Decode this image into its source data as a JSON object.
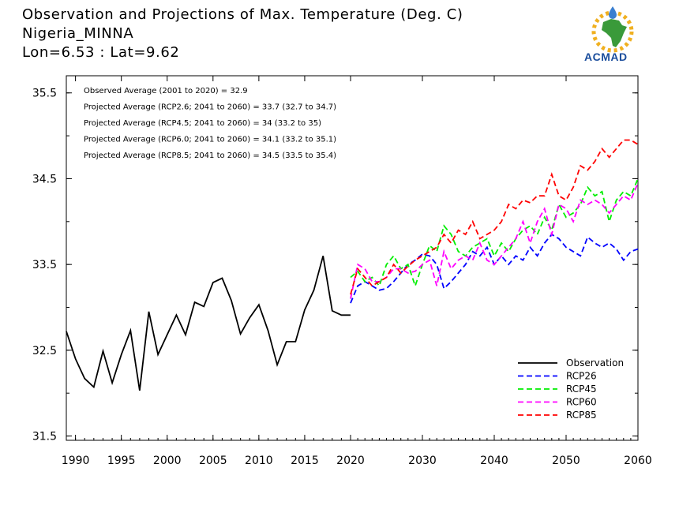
{
  "header": {
    "title": "Observation and Projections of Max. Temperature (Deg. C)",
    "location": "Nigeria_MINNA",
    "coords": "Lon=6.53 : Lat=9.62"
  },
  "logo": {
    "text": "ACMAD"
  },
  "chart_data": {
    "type": "line",
    "title": "Observation and Projections of Max. Temperature (Deg. C)",
    "xlabel": "",
    "ylabel": "",
    "xlim": [
      1989,
      2060
    ],
    "ylim": [
      31.45,
      35.7
    ],
    "x_ticks": [
      "1990",
      "1995",
      "2000",
      "2005",
      "2010",
      "2015",
      "2020",
      "2030",
      "2040",
      "2050",
      "2060"
    ],
    "x_tick_values": [
      1990,
      1995,
      2000,
      2005,
      2010,
      2015,
      2020,
      2030,
      2040,
      2050,
      2060
    ],
    "y_ticks": [
      "31.5",
      "32.5",
      "33.5",
      "34.5",
      "35.5"
    ],
    "y_tick_values": [
      31.5,
      32.5,
      33.5,
      34.5,
      35.5
    ],
    "annotations": [
      "Observed Average (2001 to 2020) = 32.9",
      "Projected Average (RCP2.6; 2041 to 2060) = 33.7 (32.7 to 34.7)",
      "Projected Average (RCP4.5; 2041 to 2060) = 34 (33.2 to 35)",
      "Projected Average (RCP6.0; 2041 to 2060) = 34.1 (33.2 to 35.1)",
      "Projected Average (RCP8.5; 2041 to 2060) = 34.5 (33.5 to 35.4)"
    ],
    "legend_position": "bottom-right",
    "series": [
      {
        "name": "Observation",
        "color": "#000000",
        "dashed": false,
        "x": [
          1989,
          1990,
          1991,
          1992,
          1993,
          1994,
          1995,
          1996,
          1997,
          1998,
          1999,
          2000,
          2001,
          2002,
          2003,
          2004,
          2005,
          2006,
          2007,
          2008,
          2009,
          2010,
          2011,
          2012,
          2013,
          2014,
          2015,
          2016,
          2017,
          2018,
          2019,
          2020
        ],
        "y": [
          32.72,
          32.4,
          32.17,
          32.07,
          32.49,
          32.12,
          32.45,
          32.73,
          32.03,
          32.95,
          32.45,
          32.68,
          32.91,
          32.68,
          33.06,
          33.01,
          33.29,
          33.34,
          33.08,
          32.69,
          32.88,
          33.03,
          32.73,
          32.33,
          32.6,
          32.6,
          32.97,
          33.2,
          33.6,
          32.96,
          32.91,
          32.91
        ]
      },
      {
        "name": "RCP26",
        "color": "#0000ff",
        "dashed": true,
        "x": [
          2020,
          2021,
          2022,
          2023,
          2024,
          2025,
          2026,
          2027,
          2028,
          2029,
          2030,
          2031,
          2032,
          2033,
          2034,
          2035,
          2036,
          2037,
          2038,
          2039,
          2040,
          2041,
          2042,
          2043,
          2044,
          2045,
          2046,
          2047,
          2048,
          2049,
          2050,
          2051,
          2052,
          2053,
          2054,
          2055,
          2056,
          2057,
          2058,
          2059,
          2060
        ],
        "y": [
          33.05,
          33.25,
          33.3,
          33.25,
          33.2,
          33.22,
          33.3,
          33.4,
          33.5,
          33.55,
          33.62,
          33.6,
          33.5,
          33.22,
          33.3,
          33.4,
          33.5,
          33.65,
          33.6,
          33.7,
          33.5,
          33.6,
          33.5,
          33.6,
          33.55,
          33.7,
          33.6,
          33.75,
          33.85,
          33.8,
          33.7,
          33.65,
          33.6,
          33.82,
          33.75,
          33.7,
          33.75,
          33.68,
          33.55,
          33.65,
          33.68
        ]
      },
      {
        "name": "RCP45",
        "color": "#00ee00",
        "dashed": true,
        "x": [
          2020,
          2021,
          2022,
          2023,
          2024,
          2025,
          2026,
          2027,
          2028,
          2029,
          2030,
          2031,
          2032,
          2033,
          2034,
          2035,
          2036,
          2037,
          2038,
          2039,
          2040,
          2041,
          2042,
          2043,
          2044,
          2045,
          2046,
          2047,
          2048,
          2049,
          2050,
          2051,
          2052,
          2053,
          2054,
          2055,
          2056,
          2057,
          2058,
          2059,
          2060
        ],
        "y": [
          33.35,
          33.42,
          33.3,
          33.35,
          33.25,
          33.5,
          33.6,
          33.45,
          33.5,
          33.25,
          33.5,
          33.72,
          33.65,
          33.95,
          33.85,
          33.65,
          33.6,
          33.7,
          33.75,
          33.8,
          33.6,
          33.75,
          33.65,
          33.8,
          33.9,
          33.95,
          33.85,
          34.05,
          33.9,
          34.2,
          34.05,
          34.1,
          34.2,
          34.4,
          34.3,
          34.35,
          34.0,
          34.25,
          34.35,
          34.3,
          34.5
        ]
      },
      {
        "name": "RCP60",
        "color": "#ff00ff",
        "dashed": true,
        "x": [
          2020,
          2021,
          2022,
          2023,
          2024,
          2025,
          2026,
          2027,
          2028,
          2029,
          2030,
          2031,
          2032,
          2033,
          2034,
          2035,
          2036,
          2037,
          2038,
          2039,
          2040,
          2041,
          2042,
          2043,
          2044,
          2045,
          2046,
          2047,
          2048,
          2049,
          2050,
          2051,
          2052,
          2053,
          2054,
          2055,
          2056,
          2057,
          2058,
          2059,
          2060
        ],
        "y": [
          33.1,
          33.5,
          33.45,
          33.3,
          33.3,
          33.35,
          33.45,
          33.45,
          33.4,
          33.42,
          33.5,
          33.55,
          33.25,
          33.65,
          33.45,
          33.55,
          33.6,
          33.55,
          33.75,
          33.55,
          33.5,
          33.6,
          33.7,
          33.8,
          34.0,
          33.75,
          34.0,
          34.15,
          33.85,
          34.2,
          34.15,
          34.0,
          34.25,
          34.2,
          34.25,
          34.2,
          34.1,
          34.2,
          34.3,
          34.25,
          34.45
        ]
      },
      {
        "name": "RCP85",
        "color": "#ff0000",
        "dashed": true,
        "x": [
          2020,
          2021,
          2022,
          2023,
          2024,
          2025,
          2026,
          2027,
          2028,
          2029,
          2030,
          2031,
          2032,
          2033,
          2034,
          2035,
          2036,
          2037,
          2038,
          2039,
          2040,
          2041,
          2042,
          2043,
          2044,
          2045,
          2046,
          2047,
          2048,
          2049,
          2050,
          2051,
          2052,
          2053,
          2054,
          2055,
          2056,
          2057,
          2058,
          2059,
          2060
        ],
        "y": [
          33.15,
          33.45,
          33.35,
          33.25,
          33.3,
          33.35,
          33.5,
          33.4,
          33.48,
          33.55,
          33.6,
          33.65,
          33.7,
          33.85,
          33.75,
          33.9,
          33.85,
          34.0,
          33.8,
          33.85,
          33.9,
          34.0,
          34.2,
          34.15,
          34.25,
          34.22,
          34.3,
          34.3,
          34.55,
          34.3,
          34.25,
          34.4,
          34.65,
          34.6,
          34.7,
          34.85,
          34.75,
          34.85,
          34.95,
          34.95,
          34.9
        ]
      }
    ]
  }
}
